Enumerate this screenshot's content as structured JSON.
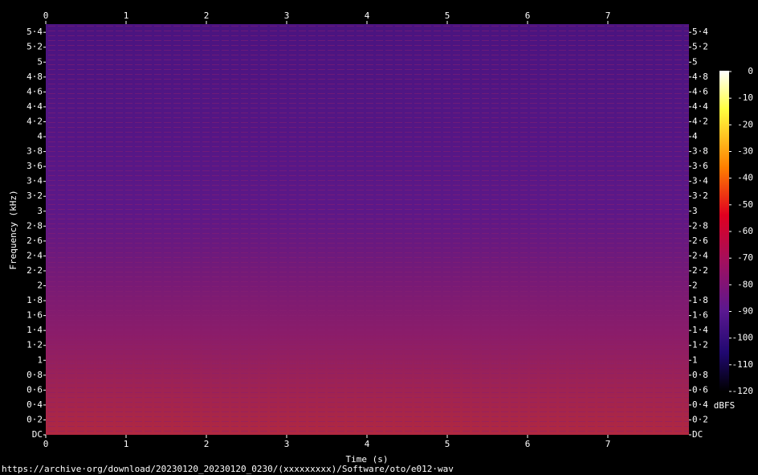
{
  "chart_data": {
    "type": "spectrogram",
    "xlabel": "Time (s)",
    "ylabel": "Frequency (kHz)",
    "xlim": [
      0,
      8.01
    ],
    "xticks": [
      0,
      1,
      2,
      3,
      4,
      5,
      6,
      7
    ],
    "ylim": [
      0,
      5.51
    ],
    "yticks": [
      {
        "value": 0,
        "label": "DC"
      },
      {
        "value": 0.2,
        "label": "0·2"
      },
      {
        "value": 0.4,
        "label": "0·4"
      },
      {
        "value": 0.6,
        "label": "0·6"
      },
      {
        "value": 0.8,
        "label": "0·8"
      },
      1,
      {
        "value": 1.2,
        "label": "1·2"
      },
      {
        "value": 1.4,
        "label": "1·4"
      },
      {
        "value": 1.6,
        "label": "1·6"
      },
      {
        "value": 1.8,
        "label": "1·8"
      },
      2,
      {
        "value": 2.2,
        "label": "2·2"
      },
      {
        "value": 2.4,
        "label": "2·4"
      },
      {
        "value": 2.6,
        "label": "2·6"
      },
      {
        "value": 2.8,
        "label": "2·8"
      },
      3,
      {
        "value": 3.2,
        "label": "3·2"
      },
      {
        "value": 3.4,
        "label": "3·4"
      },
      {
        "value": 3.6,
        "label": "3·6"
      },
      {
        "value": 3.8,
        "label": "3·8"
      },
      4,
      {
        "value": 4.2,
        "label": "4·2"
      },
      {
        "value": 4.4,
        "label": "4·4"
      },
      {
        "value": 4.6,
        "label": "4·6"
      },
      {
        "value": 4.8,
        "label": "4·8"
      },
      5,
      {
        "value": 5.2,
        "label": "5·2"
      },
      {
        "value": 5.4,
        "label": "5·4"
      }
    ],
    "colorbar": {
      "label": "dBFS",
      "lim": [
        -120,
        0
      ],
      "ticks": [
        0,
        -10,
        -20,
        -30,
        -40,
        -50,
        -60,
        -70,
        -80,
        -90,
        -100,
        -110,
        -120
      ]
    }
  },
  "footer": "https://archive·org/download/20230120_20230120_0230/(xxxxxxxxx)/Software/oto/e012·wav"
}
